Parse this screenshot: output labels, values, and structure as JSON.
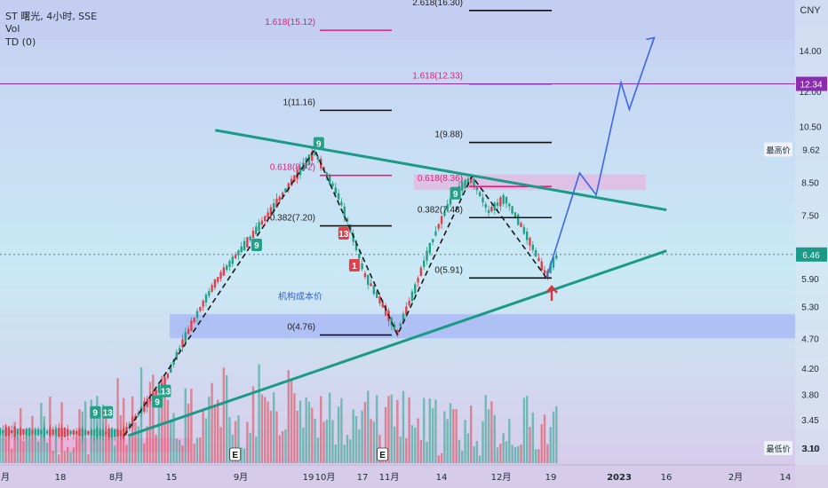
{
  "header": {
    "line1": "ST 曙光, 4小时, SSE",
    "line2": "Vol",
    "line3": "TD (0)"
  },
  "currency": "CNY",
  "colors": {
    "bg_top": "#c6cff2",
    "bg_bottom": "#d9c9ea",
    "up": "#22a187",
    "down": "#e0404c",
    "trend": "#1a9a87",
    "projection": "#3d67e8",
    "fib": "#111111",
    "fib_pink": "#e0207a",
    "purple": "#8a2bb0",
    "zone": "#a8b8f5",
    "pinkzone": "#f0a8d8"
  },
  "chart_data": {
    "type": "candlestick",
    "symbol": "ST 曙光",
    "interval": "4小时",
    "exchange": "SSE",
    "y_axis": {
      "scale": "log",
      "range": [
        3.0,
        17.0
      ],
      "ticks": [
        14.0,
        12.0,
        10.5,
        8.5,
        7.5,
        5.9,
        5.3,
        4.7,
        4.2,
        3.8,
        3.45,
        3.1
      ],
      "marked": [
        {
          "label": "12.34",
          "value": 12.34,
          "style": "purple"
        },
        {
          "label": "9.62",
          "value": 9.62,
          "tag": "最高价"
        },
        {
          "label": "6.46",
          "value": 6.46,
          "style": "current"
        },
        {
          "label": "3.10",
          "value": 3.1,
          "tag": "最低价"
        }
      ]
    },
    "x_axis": {
      "ticks": [
        "月",
        "18",
        "8月",
        "15",
        "9月",
        "19",
        "10月",
        "17",
        "11月",
        "14",
        "12月",
        "19",
        "2023",
        "16",
        "2月",
        "14"
      ]
    },
    "fib_left": [
      {
        "label": "1.618(15.12)",
        "value": 15.12,
        "pink": true
      },
      {
        "label": "1(11.16)",
        "value": 11.16
      },
      {
        "label": "0.618(8.72)",
        "value": 8.72,
        "pink": true
      },
      {
        "label": "0.382(7.20)",
        "value": 7.2
      },
      {
        "label": "0(4.76)",
        "value": 4.76
      }
    ],
    "fib_right": [
      {
        "label": "2.618(16.30)",
        "value": 16.3
      },
      {
        "label": "1.618(12.33)",
        "value": 12.33,
        "pink": true
      },
      {
        "label": "1(9.88)",
        "value": 9.88
      },
      {
        "label": "0.618(8.36)",
        "value": 8.36,
        "pink": true
      },
      {
        "label": "0.382(7.43)",
        "value": 7.43
      },
      {
        "label": "0(5.91)",
        "value": 5.91
      }
    ],
    "annotations": {
      "zone_label": "机构成本价",
      "earnings_markers": [
        "E",
        "E"
      ],
      "td_counts": [
        "9",
        "13",
        "9",
        "13",
        "9",
        "9",
        "13",
        "1",
        "9"
      ]
    },
    "wave_path": [
      {
        "t": 0.15,
        "p": 3.25
      },
      {
        "t": 0.38,
        "p": 9.62
      },
      {
        "t": 0.48,
        "p": 4.76
      },
      {
        "t": 0.57,
        "p": 8.7
      },
      {
        "t": 0.66,
        "p": 5.91
      }
    ],
    "projection_path": [
      {
        "t": 0.66,
        "p": 5.91
      },
      {
        "t": 0.7,
        "p": 8.8
      },
      {
        "t": 0.72,
        "p": 8.1
      },
      {
        "t": 0.75,
        "p": 12.4
      },
      {
        "t": 0.76,
        "p": 11.2
      },
      {
        "t": 0.79,
        "p": 14.7
      }
    ]
  }
}
